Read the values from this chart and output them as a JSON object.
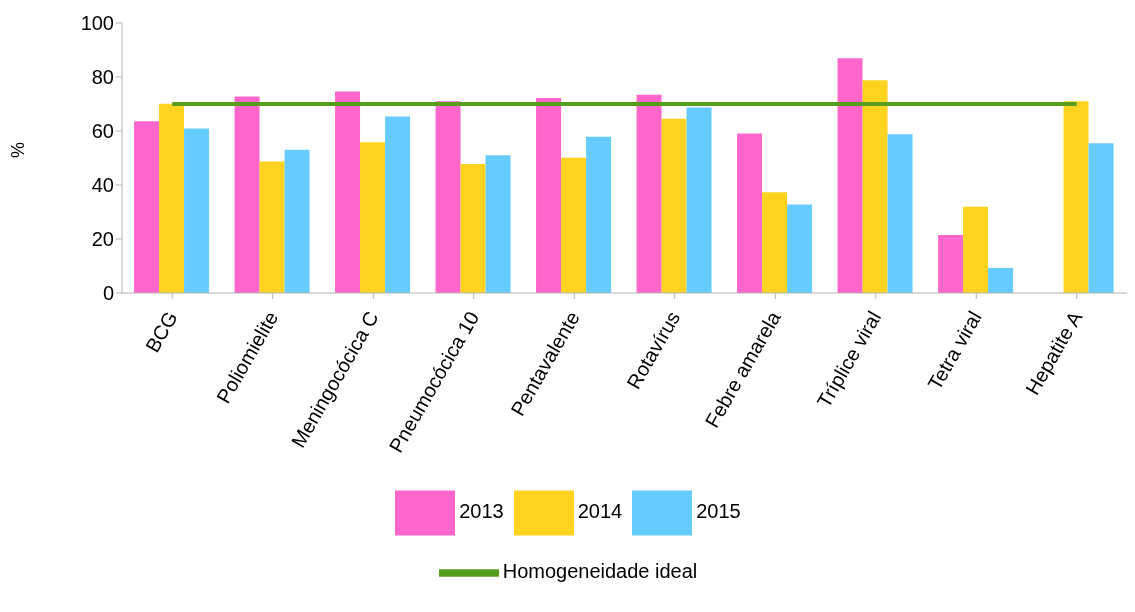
{
  "chart_data": {
    "type": "bar",
    "ylabel": "%",
    "categories": [
      "BCG",
      "Poliomielite",
      "Meningocócica C",
      "Pneumocócica 10",
      "Pentavalente",
      "Rotavírus",
      "Febre amarela",
      "Tríplice viral",
      "Tetra viral",
      "Hepatite A"
    ],
    "series": [
      {
        "name": "2013",
        "color": "#ff66cc",
        "values": [
          63.6,
          72.8,
          74.6,
          71.0,
          72.2,
          73.4,
          59.1,
          86.9,
          21.5,
          null
        ]
      },
      {
        "name": "2014",
        "color": "#ffd320",
        "values": [
          70.1,
          48.7,
          55.8,
          47.8,
          50.1,
          64.5,
          37.3,
          78.8,
          31.9,
          71.0
        ]
      },
      {
        "name": "2015",
        "color": "#66ccff",
        "values": [
          60.9,
          53.1,
          65.4,
          51.0,
          57.9,
          68.7,
          32.8,
          58.8,
          9.3,
          55.5
        ]
      },
      {
        "name": "Homogeneidade ideal",
        "type": "line",
        "color": "#579d1c",
        "values": [
          70,
          70,
          70,
          70,
          70,
          70,
          70,
          70,
          70,
          70
        ]
      }
    ],
    "ylim": [
      0,
      100
    ],
    "yticks": [
      0,
      20,
      40,
      60,
      80,
      100
    ],
    "grid": false,
    "legend": "bottom",
    "marker": "none"
  }
}
